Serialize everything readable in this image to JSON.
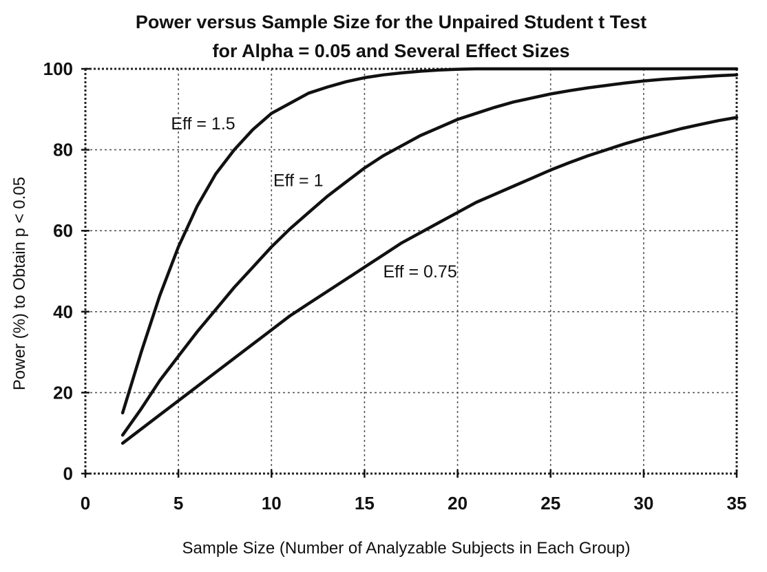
{
  "chart_data": {
    "type": "line",
    "title": "Power versus Sample Size for the Unpaired Student t Test",
    "subtitle": "for Alpha = 0.05 and Several Effect Sizes",
    "xlabel": "Sample Size (Number of Analyzable Subjects in Each Group)",
    "ylabel": "Power (%) to Obtain p < 0.05",
    "xlim": [
      0,
      35
    ],
    "ylim": [
      0,
      100
    ],
    "x_ticks": [
      "0",
      "5",
      "10",
      "15",
      "20",
      "25",
      "30",
      "35"
    ],
    "y_ticks": [
      "0",
      "20",
      "40",
      "60",
      "80",
      "100"
    ],
    "grid": true,
    "x": [
      2,
      3,
      4,
      5,
      6,
      7,
      8,
      9,
      10,
      11,
      12,
      13,
      14,
      15,
      16,
      17,
      18,
      19,
      20,
      21,
      22,
      23,
      24,
      25,
      26,
      27,
      28,
      29,
      30,
      31,
      32,
      33,
      34,
      35
    ],
    "series": [
      {
        "name": "Eff = 1.5",
        "label": "Eff = 1.5",
        "color": "#111111",
        "values": [
          15,
          30,
          44,
          56,
          66,
          74,
          80,
          85,
          89,
          91.5,
          94,
          95.5,
          96.8,
          97.8,
          98.5,
          99,
          99.4,
          99.7,
          99.9,
          100,
          100,
          100,
          100,
          100,
          100,
          100,
          100,
          100,
          100,
          100,
          100,
          100,
          100,
          100
        ]
      },
      {
        "name": "Eff = 1",
        "label": "Eff = 1",
        "color": "#111111",
        "values": [
          9.5,
          16,
          23,
          29,
          35,
          40.5,
          46,
          51,
          56,
          60.5,
          64.5,
          68.5,
          72,
          75.5,
          78.5,
          81,
          83.5,
          85.5,
          87.5,
          89,
          90.5,
          91.8,
          92.8,
          93.8,
          94.6,
          95.3,
          95.9,
          96.5,
          97,
          97.4,
          97.7,
          98,
          98.3,
          98.5
        ]
      },
      {
        "name": "Eff = 0.75",
        "label": "Eff = 0.75",
        "color": "#111111",
        "values": [
          7.5,
          11,
          14.5,
          18,
          21.5,
          25,
          28.5,
          32,
          35.5,
          39,
          42,
          45,
          48,
          51,
          54,
          57,
          59.5,
          62,
          64.5,
          67,
          69,
          71,
          73,
          75,
          76.8,
          78.5,
          80,
          81.5,
          82.8,
          84,
          85.2,
          86.2,
          87.2,
          88
        ]
      }
    ]
  }
}
